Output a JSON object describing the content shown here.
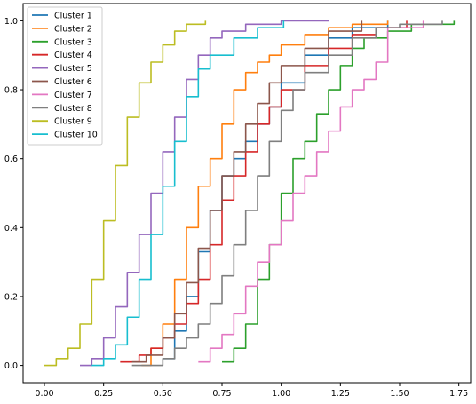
{
  "chart_data": {
    "type": "line",
    "title": "",
    "xlabel": "",
    "ylabel": "",
    "xlim": [
      -0.09,
      1.8
    ],
    "ylim": [
      -0.05,
      1.05
    ],
    "grid": false,
    "legend_position": "upper-left",
    "x_ticks": [
      0.0,
      0.25,
      0.5,
      0.75,
      1.0,
      1.25,
      1.5,
      1.75
    ],
    "x_tick_labels": [
      "0.00",
      "0.25",
      "0.50",
      "0.75",
      "1.00",
      "1.25",
      "1.50",
      "1.75"
    ],
    "y_ticks": [
      0.0,
      0.2,
      0.4,
      0.6,
      0.8,
      1.0
    ],
    "y_tick_labels": [
      "0.0",
      "0.2",
      "0.4",
      "0.6",
      "0.8",
      "1.0"
    ],
    "series": [
      {
        "name": "Cluster 1",
        "color": "#1f77b4",
        "x": [
          0.5,
          0.55,
          0.6,
          0.65,
          0.7,
          0.75,
          0.8,
          0.85,
          0.9,
          0.95,
          1.0,
          1.1,
          1.2,
          1.3,
          1.45
        ],
        "y": [
          0.02,
          0.1,
          0.2,
          0.33,
          0.45,
          0.55,
          0.6,
          0.65,
          0.7,
          0.75,
          0.82,
          0.9,
          0.95,
          0.98,
          1.0
        ]
      },
      {
        "name": "Cluster 2",
        "color": "#ff7f0e",
        "x": [
          0.41,
          0.45,
          0.5,
          0.55,
          0.6,
          0.65,
          0.7,
          0.75,
          0.8,
          0.85,
          0.9,
          0.95,
          1.0,
          1.1,
          1.2,
          1.3,
          1.45
        ],
        "y": [
          0.0,
          0.05,
          0.12,
          0.25,
          0.4,
          0.52,
          0.6,
          0.7,
          0.8,
          0.85,
          0.88,
          0.9,
          0.93,
          0.96,
          0.98,
          0.99,
          1.0
        ]
      },
      {
        "name": "Cluster 3",
        "color": "#2ca02c",
        "x": [
          0.75,
          0.8,
          0.85,
          0.9,
          0.95,
          1.0,
          1.05,
          1.1,
          1.15,
          1.2,
          1.25,
          1.3,
          1.35,
          1.45,
          1.55,
          1.73
        ],
        "y": [
          0.01,
          0.05,
          0.12,
          0.25,
          0.35,
          0.5,
          0.6,
          0.65,
          0.73,
          0.8,
          0.87,
          0.92,
          0.95,
          0.97,
          0.99,
          1.0
        ]
      },
      {
        "name": "Cluster 4",
        "color": "#d62728",
        "x": [
          0.32,
          0.4,
          0.45,
          0.5,
          0.55,
          0.6,
          0.65,
          0.7,
          0.75,
          0.8,
          0.85,
          0.9,
          0.95,
          1.0,
          1.1,
          1.2,
          1.3,
          1.4,
          1.53
        ],
        "y": [
          0.01,
          0.03,
          0.05,
          0.08,
          0.12,
          0.18,
          0.25,
          0.35,
          0.48,
          0.55,
          0.62,
          0.7,
          0.75,
          0.8,
          0.87,
          0.92,
          0.96,
          0.98,
          1.0
        ]
      },
      {
        "name": "Cluster 5",
        "color": "#9467bd",
        "x": [
          0.15,
          0.2,
          0.25,
          0.3,
          0.35,
          0.4,
          0.45,
          0.5,
          0.55,
          0.6,
          0.65,
          0.7,
          0.75,
          0.85,
          1.0,
          1.2
        ],
        "y": [
          0.0,
          0.02,
          0.08,
          0.17,
          0.27,
          0.38,
          0.5,
          0.62,
          0.72,
          0.83,
          0.9,
          0.95,
          0.97,
          0.99,
          1.0,
          1.0
        ]
      },
      {
        "name": "Cluster 6",
        "color": "#8c564b",
        "x": [
          0.37,
          0.43,
          0.5,
          0.55,
          0.6,
          0.65,
          0.7,
          0.75,
          0.8,
          0.85,
          0.9,
          0.95,
          1.0,
          1.1,
          1.2,
          1.34
        ],
        "y": [
          0.01,
          0.03,
          0.08,
          0.15,
          0.24,
          0.34,
          0.45,
          0.55,
          0.62,
          0.7,
          0.76,
          0.82,
          0.87,
          0.92,
          0.97,
          1.0
        ]
      },
      {
        "name": "Cluster 7",
        "color": "#e377c2",
        "x": [
          0.65,
          0.7,
          0.75,
          0.8,
          0.85,
          0.9,
          0.95,
          1.0,
          1.05,
          1.1,
          1.15,
          1.2,
          1.25,
          1.3,
          1.35,
          1.4,
          1.45,
          1.6
        ],
        "y": [
          0.01,
          0.05,
          0.09,
          0.15,
          0.23,
          0.3,
          0.35,
          0.42,
          0.5,
          0.55,
          0.62,
          0.68,
          0.75,
          0.8,
          0.83,
          0.88,
          0.98,
          1.0
        ]
      },
      {
        "name": "Cluster 8",
        "color": "#7f7f7f",
        "x": [
          0.37,
          0.5,
          0.55,
          0.6,
          0.65,
          0.7,
          0.75,
          0.8,
          0.85,
          0.9,
          0.95,
          1.0,
          1.05,
          1.1,
          1.2,
          1.3,
          1.4,
          1.5,
          1.68
        ],
        "y": [
          0.0,
          0.02,
          0.05,
          0.08,
          0.12,
          0.18,
          0.26,
          0.35,
          0.45,
          0.55,
          0.65,
          0.74,
          0.8,
          0.85,
          0.9,
          0.95,
          0.98,
          0.99,
          1.0
        ]
      },
      {
        "name": "Cluster 9",
        "color": "#bcbd22",
        "x": [
          0.0,
          0.05,
          0.1,
          0.15,
          0.2,
          0.25,
          0.3,
          0.35,
          0.4,
          0.45,
          0.5,
          0.55,
          0.6,
          0.68
        ],
        "y": [
          0.0,
          0.02,
          0.05,
          0.12,
          0.25,
          0.42,
          0.58,
          0.72,
          0.82,
          0.88,
          0.93,
          0.97,
          0.99,
          1.0
        ]
      },
      {
        "name": "Cluster 10",
        "color": "#17becf",
        "x": [
          0.2,
          0.25,
          0.3,
          0.35,
          0.4,
          0.45,
          0.5,
          0.55,
          0.6,
          0.65,
          0.7,
          0.8,
          0.9,
          1.01
        ],
        "y": [
          0.0,
          0.02,
          0.06,
          0.14,
          0.25,
          0.38,
          0.52,
          0.65,
          0.78,
          0.86,
          0.9,
          0.95,
          0.98,
          1.0
        ]
      }
    ]
  }
}
